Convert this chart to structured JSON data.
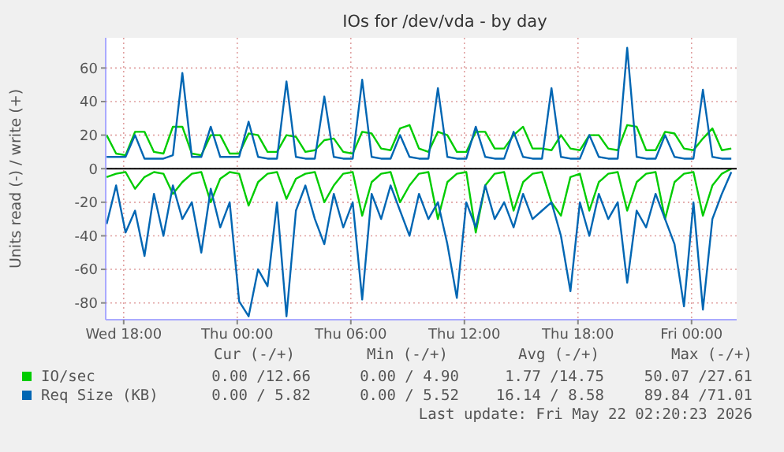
{
  "chart_data": {
    "type": "line",
    "title": "IOs for /dev/vda - by day",
    "ylabel": "Units read (-) / write (+)",
    "x": [
      "2026-05-20T17:06",
      "2026-05-20T17:36",
      "2026-05-20T18:06",
      "2026-05-20T18:36",
      "2026-05-20T19:06",
      "2026-05-20T19:36",
      "2026-05-20T20:06",
      "2026-05-20T20:36",
      "2026-05-20T21:06",
      "2026-05-20T21:36",
      "2026-05-20T22:06",
      "2026-05-20T22:36",
      "2026-05-20T23:06",
      "2026-05-20T23:36",
      "2026-05-21T00:06",
      "2026-05-21T00:36",
      "2026-05-21T01:06",
      "2026-05-21T01:36",
      "2026-05-21T02:06",
      "2026-05-21T02:36",
      "2026-05-21T03:06",
      "2026-05-21T03:36",
      "2026-05-21T04:06",
      "2026-05-21T04:36",
      "2026-05-21T05:06",
      "2026-05-21T05:36",
      "2026-05-21T06:06",
      "2026-05-21T06:36",
      "2026-05-21T07:06",
      "2026-05-21T07:36",
      "2026-05-21T08:06",
      "2026-05-21T08:36",
      "2026-05-21T09:06",
      "2026-05-21T09:36",
      "2026-05-21T10:06",
      "2026-05-21T10:36",
      "2026-05-21T11:06",
      "2026-05-21T11:36",
      "2026-05-21T12:06",
      "2026-05-21T12:36",
      "2026-05-21T13:06",
      "2026-05-21T13:36",
      "2026-05-21T14:06",
      "2026-05-21T14:36",
      "2026-05-21T15:06",
      "2026-05-21T15:36",
      "2026-05-21T16:06",
      "2026-05-21T16:36",
      "2026-05-21T17:06",
      "2026-05-21T17:36",
      "2026-05-21T18:06",
      "2026-05-21T18:36",
      "2026-05-21T19:06",
      "2026-05-21T19:36",
      "2026-05-21T20:06",
      "2026-05-21T20:36",
      "2026-05-21T21:06",
      "2026-05-21T21:36",
      "2026-05-21T22:06",
      "2026-05-21T22:36",
      "2026-05-21T23:06",
      "2026-05-21T23:36",
      "2026-05-22T00:06",
      "2026-05-22T00:36",
      "2026-05-22T01:06",
      "2026-05-22T01:36",
      "2026-05-22T02:06"
    ],
    "series": [
      {
        "name": "IO/sec",
        "color": "#00cc00",
        "values": [
          20,
          9,
          8,
          22,
          22,
          10,
          9,
          25,
          25,
          9,
          8,
          20,
          20,
          9,
          9,
          21,
          20,
          10,
          10,
          20,
          19,
          10,
          11,
          17,
          18,
          10,
          9,
          22,
          21,
          12,
          11,
          24,
          26,
          12,
          10,
          22,
          20,
          10,
          10,
          22,
          22,
          12,
          12,
          20,
          25,
          12,
          12,
          11,
          20,
          12,
          11,
          20,
          20,
          12,
          11,
          26,
          25,
          11,
          11,
          22,
          21,
          12,
          11,
          18,
          24,
          11,
          12
        ]
      },
      {
        "color": "#00cc00",
        "values": [
          -5,
          -3,
          -2,
          -12,
          -5,
          -2,
          -3,
          -15,
          -8,
          -3,
          -2,
          -20,
          -6,
          -2,
          -3,
          -22,
          -8,
          -3,
          -2,
          -18,
          -6,
          -3,
          -2,
          -20,
          -10,
          -3,
          -2,
          -28,
          -8,
          -3,
          -2,
          -20,
          -10,
          -3,
          -2,
          -30,
          -8,
          -3,
          -2,
          -38,
          -10,
          -3,
          -2,
          -25,
          -8,
          -3,
          -2,
          -20,
          -28,
          -5,
          -3,
          -25,
          -8,
          -3,
          -2,
          -25,
          -8,
          -3,
          -2,
          -30,
          -8,
          -3,
          -2,
          -28,
          -10,
          -3,
          0
        ]
      },
      {
        "name": "Req Size (KB)",
        "color": "#0066b3",
        "values": [
          7,
          7,
          7,
          20,
          6,
          6,
          6,
          8,
          57,
          7,
          7,
          25,
          7,
          7,
          7,
          28,
          7,
          6,
          6,
          52,
          7,
          6,
          6,
          43,
          7,
          6,
          6,
          53,
          7,
          6,
          6,
          20,
          7,
          6,
          6,
          48,
          7,
          6,
          6,
          25,
          7,
          6,
          6,
          22,
          7,
          6,
          6,
          48,
          7,
          6,
          6,
          20,
          7,
          6,
          6,
          72,
          7,
          6,
          6,
          20,
          7,
          6,
          6,
          47,
          7,
          6,
          6
        ]
      },
      {
        "color": "#0066b3",
        "values": [
          -33,
          -10,
          -38,
          -25,
          -52,
          -15,
          -40,
          -10,
          -30,
          -20,
          -50,
          -12,
          -35,
          -20,
          -79,
          -88,
          -60,
          -70,
          -20,
          -88,
          -25,
          -10,
          -30,
          -45,
          -15,
          -35,
          -20,
          -78,
          -15,
          -30,
          -10,
          -25,
          -40,
          -15,
          -30,
          -20,
          -45,
          -77,
          -20,
          -35,
          -10,
          -30,
          -20,
          -35,
          -15,
          -30,
          -25,
          -20,
          -40,
          -73,
          -20,
          -40,
          -15,
          -30,
          -20,
          -68,
          -25,
          -35,
          -15,
          -30,
          -45,
          -82,
          -20,
          -84,
          -30,
          -15,
          -2
        ]
      }
    ],
    "xlim": [
      "2026-05-20T17:03",
      "2026-05-22T02:23"
    ],
    "xticks": [
      {
        "value": "2026-05-20T18:00",
        "label": "Wed 18:00"
      },
      {
        "value": "2026-05-21T00:00",
        "label": "Thu 00:00"
      },
      {
        "value": "2026-05-21T06:00",
        "label": "Thu 06:00"
      },
      {
        "value": "2026-05-21T12:00",
        "label": "Thu 12:00"
      },
      {
        "value": "2026-05-21T18:00",
        "label": "Thu 18:00"
      },
      {
        "value": "2026-05-22T00:00",
        "label": "Fri 00:00"
      }
    ],
    "ylim": [
      -90,
      78
    ],
    "yticks": [
      -80,
      -60,
      -40,
      -20,
      0,
      20,
      40,
      60
    ],
    "ref_lines": [
      {
        "axis": "y",
        "value": 0,
        "color": "#000000"
      }
    ],
    "grid": true,
    "legend": "bottom left",
    "marker": "none",
    "line_style": "solid",
    "annotations": [
      "Cur (-/+)",
      "Min (-/+)",
      "Avg (-/+)",
      "Max (-/+)",
      "0.00 /12.66",
      "0.00 / 4.90",
      "1.77 /14.75",
      "50.07 /27.61",
      "0.00 / 5.82",
      "0.00 / 5.52",
      "16.14 / 8.58",
      "89.84 /71.01",
      "Last update: Fri May 22 02:20:23 2026"
    ]
  }
}
